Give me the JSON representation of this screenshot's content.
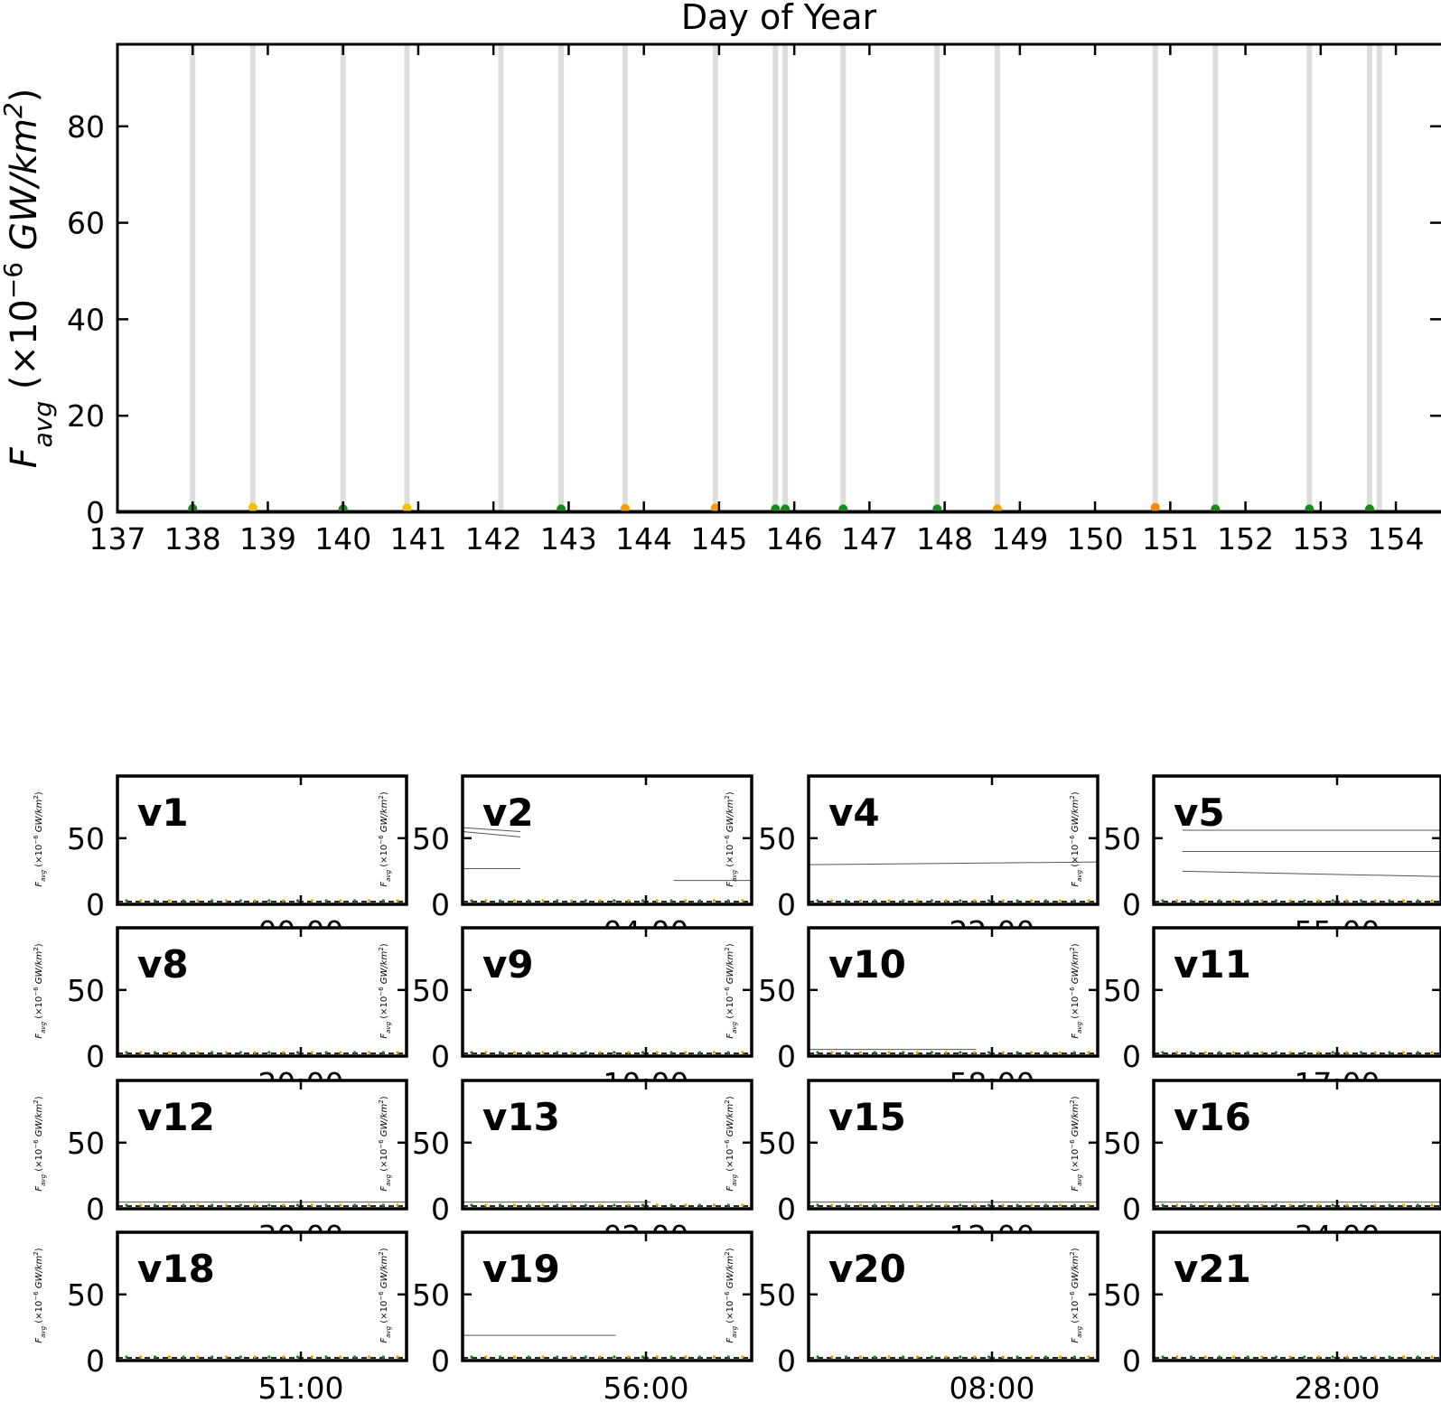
{
  "chart_data": [
    {
      "type": "scatter",
      "title": "Day of Year",
      "xlabel": "",
      "ylabel": "F_avg (×10⁻⁶ GW/km²)",
      "ylabel_main": "F",
      "ylabel_sub": "avg",
      "ylabel_rest": " (×10",
      "ylabel_exp": "−6",
      "ylabel_unit": " GW/km",
      "ylabel_sq": "2",
      "ylabel_close": ")",
      "xlim": [
        137,
        154.6
      ],
      "ylim": [
        0,
        97
      ],
      "xticks": [
        137,
        138,
        139,
        140,
        141,
        142,
        143,
        144,
        145,
        146,
        147,
        148,
        149,
        150,
        151,
        152,
        153,
        154
      ],
      "xtick_labels": [
        "137",
        "138",
        "139",
        "140",
        "141",
        "142",
        "143",
        "144",
        "145",
        "146",
        "147",
        "148",
        "149",
        "150",
        "151",
        "152",
        "153",
        "154"
      ],
      "yticks": [
        0,
        20,
        40,
        60,
        80
      ],
      "ytick_labels": [
        "0",
        "20",
        "40",
        "60",
        "80"
      ],
      "grid": false,
      "event_days": [
        138.0,
        138.8,
        140.0,
        140.85,
        142.1,
        142.9,
        143.75,
        144.95,
        145.75,
        145.88,
        146.65,
        147.9,
        148.7,
        150.8,
        151.6,
        152.85,
        153.65,
        153.78
      ],
      "points": [
        {
          "x": 138.0,
          "y": 0.4,
          "color": "#1a8a1a"
        },
        {
          "x": 138.8,
          "y": 0.6,
          "color": "#f5c000"
        },
        {
          "x": 140.0,
          "y": 0.3,
          "color": "#1a8a1a"
        },
        {
          "x": 140.85,
          "y": 0.5,
          "color": "#f5c000"
        },
        {
          "x": 142.9,
          "y": 0.3,
          "color": "#1a8a1a"
        },
        {
          "x": 143.75,
          "y": 0.4,
          "color": "#f5a000"
        },
        {
          "x": 144.95,
          "y": 0.5,
          "color": "#f5a000"
        },
        {
          "x": 145.75,
          "y": 0.3,
          "color": "#1a8a1a"
        },
        {
          "x": 145.88,
          "y": 0.3,
          "color": "#1a8a1a"
        },
        {
          "x": 146.65,
          "y": 0.3,
          "color": "#1a8a1a"
        },
        {
          "x": 147.9,
          "y": 0.3,
          "color": "#1a8a1a"
        },
        {
          "x": 148.7,
          "y": 0.3,
          "color": "#f5a000"
        },
        {
          "x": 150.8,
          "y": 0.6,
          "color": "#f58a00"
        },
        {
          "x": 151.6,
          "y": 0.3,
          "color": "#1a8a1a"
        },
        {
          "x": 152.85,
          "y": 0.3,
          "color": "#1a8a1a"
        },
        {
          "x": 153.65,
          "y": 0.3,
          "color": "#1a8a1a"
        }
      ]
    },
    {
      "type": "line",
      "panels_ylim": [
        0,
        97
      ],
      "panels_yticks": [
        0,
        50
      ],
      "panels_ytick_labels": [
        "0",
        "50"
      ],
      "panels_ylabel_main": "F",
      "panels_ylabel_sub": "avg",
      "panels_ylabel_rest": " (×10",
      "panels_ylabel_exp": "−6",
      "panels_ylabel_unit": " GW/km",
      "panels_ylabel_sq": "2",
      "panels_ylabel_close": ")",
      "panels": [
        {
          "label": "v1",
          "xtick_label": "00:00",
          "lines": []
        },
        {
          "label": "v2",
          "xtick_label": "04:00",
          "lines": [
            {
              "x": [
                0.0,
                0.2
              ],
              "y": [
                58,
                55
              ]
            },
            {
              "x": [
                0.0,
                0.2
              ],
              "y": [
                55,
                51
              ]
            },
            {
              "x": [
                0.0,
                0.2
              ],
              "y": [
                27,
                27
              ]
            },
            {
              "x": [
                0.73,
                1.0
              ],
              "y": [
                18,
                18
              ]
            }
          ]
        },
        {
          "label": "v4",
          "xtick_label": "22:00",
          "lines": [
            {
              "x": [
                0.0,
                1.0
              ],
              "y": [
                30,
                32
              ]
            }
          ]
        },
        {
          "label": "v5",
          "xtick_label": "55:00",
          "lines": [
            {
              "x": [
                0.1,
                1.0
              ],
              "y": [
                56,
                56
              ]
            },
            {
              "x": [
                0.1,
                1.0
              ],
              "y": [
                40,
                40
              ]
            },
            {
              "x": [
                0.1,
                1.0
              ],
              "y": [
                25,
                21
              ]
            }
          ]
        },
        {
          "label": "v8",
          "xtick_label": "20:00",
          "lines": []
        },
        {
          "label": "v9",
          "xtick_label": "10:00",
          "lines": []
        },
        {
          "label": "v10",
          "xtick_label": "58:00",
          "lines": [
            {
              "x": [
                0.0,
                0.58
              ],
              "y": [
                5,
                5
              ]
            }
          ]
        },
        {
          "label": "v11",
          "xtick_label": "17:00",
          "lines": []
        },
        {
          "label": "v12",
          "xtick_label": "30:00",
          "lines": [
            {
              "x": [
                0.0,
                1.0
              ],
              "y": [
                5,
                5
              ]
            }
          ]
        },
        {
          "label": "v13",
          "xtick_label": "02:00",
          "lines": [
            {
              "x": [
                0.0,
                0.65
              ],
              "y": [
                5,
                5
              ]
            }
          ]
        },
        {
          "label": "v15",
          "xtick_label": "12:00",
          "lines": [
            {
              "x": [
                0.0,
                1.0
              ],
              "y": [
                5,
                5
              ]
            }
          ]
        },
        {
          "label": "v16",
          "xtick_label": "34:00",
          "lines": [
            {
              "x": [
                0.0,
                1.0
              ],
              "y": [
                5,
                5
              ]
            }
          ]
        },
        {
          "label": "v18",
          "xtick_label": "51:00",
          "lines": []
        },
        {
          "label": "v19",
          "xtick_label": "56:00",
          "lines": [
            {
              "x": [
                0.0,
                0.53
              ],
              "y": [
                19,
                19
              ]
            }
          ]
        },
        {
          "label": "v20",
          "xtick_label": "08:00",
          "lines": []
        },
        {
          "label": "v21",
          "xtick_label": "28:00",
          "lines": []
        }
      ]
    }
  ]
}
